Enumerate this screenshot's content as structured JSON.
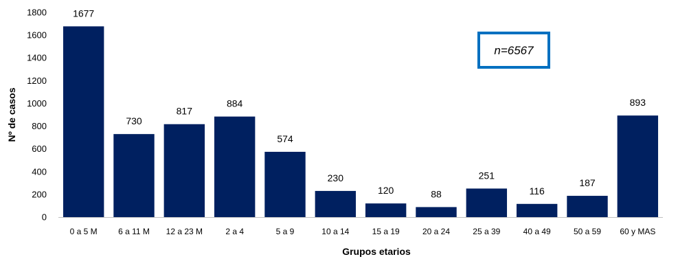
{
  "chart_data": {
    "type": "bar",
    "categories": [
      "0 a 5 M",
      "6 a 11 M",
      "12 a 23 M",
      "2 a 4",
      "5 a 9",
      "10 a 14",
      "15 a 19",
      "20 a 24",
      "25 a 39",
      "40 a 49",
      "50 a 59",
      "60 y MAS"
    ],
    "values": [
      1677,
      730,
      817,
      884,
      574,
      230,
      120,
      88,
      251,
      116,
      187,
      893
    ],
    "xlabel": "Grupos etarios",
    "ylabel": "Nº de casos",
    "ylim": [
      0,
      1800
    ],
    "yticks": [
      0,
      200,
      400,
      600,
      800,
      1000,
      1200,
      1400,
      1600,
      1800
    ],
    "bar_color": "#002060",
    "grid": false,
    "annotation": {
      "text": "n=6567",
      "border_color": "#0070C0"
    }
  }
}
